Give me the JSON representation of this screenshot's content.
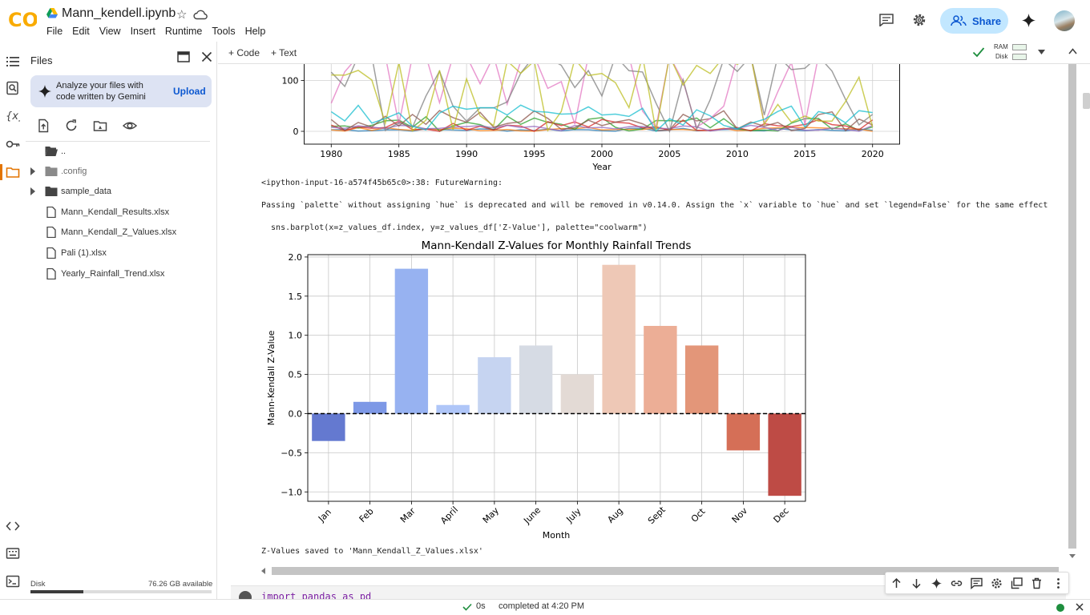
{
  "header": {
    "logo_text": "CO",
    "notebook_title": "Mann_kendell.ipynb",
    "menu": [
      "File",
      "Edit",
      "View",
      "Insert",
      "Runtime",
      "Tools",
      "Help"
    ],
    "share_label": "Share"
  },
  "files_panel": {
    "title": "Files",
    "gemini_prompt": "Analyze your files with code written by Gemini",
    "upload_label": "Upload",
    "items": [
      {
        "name": "..",
        "type": "folder-open"
      },
      {
        "name": ".config",
        "type": "folder",
        "expandable": true
      },
      {
        "name": "sample_data",
        "type": "folder",
        "expandable": true
      },
      {
        "name": "Mann_Kendall_Results.xlsx",
        "type": "file"
      },
      {
        "name": "Mann_Kendall_Z_Values.xlsx",
        "type": "file"
      },
      {
        "name": "Pali (1).xlsx",
        "type": "file"
      },
      {
        "name": "Yearly_Rainfall_Trend.xlsx",
        "type": "file"
      }
    ],
    "disk_label": "Disk",
    "disk_available": "76.26 GB available",
    "disk_used_fraction": 0.29
  },
  "toolbar": {
    "add_code": "+ Code",
    "add_text": "+ Text",
    "ram_label": "RAM",
    "disk_label": "Disk"
  },
  "output": {
    "warning_line1": "<ipython-input-16-a574f45b65c0>:38: FutureWarning:",
    "warning_line2": "Passing `palette` without assigning `hue` is deprecated and will be removed in v0.14.0. Assign the `x` variable to `hue` and set `legend=False` for the same effect",
    "code_line": "  sns.barplot(x=z_values_df.index, y=z_values_df['Z-Value'], palette=\"coolwarm\")",
    "saved_line": "Z-Values saved to 'Mann_Kendall_Z_Values.xlsx'"
  },
  "next_cell_code": "import pandas as pd",
  "status": {
    "duration": "0s",
    "message": "completed at 4:20 PM"
  },
  "chart_data": [
    {
      "type": "line",
      "title": "",
      "xlabel": "Year",
      "ylabel": "",
      "x_ticks": [
        1980,
        1985,
        1990,
        1995,
        2000,
        2005,
        2010,
        2015,
        2020
      ],
      "y_ticks_visible": [
        0,
        100
      ],
      "xlim": [
        1978,
        2022
      ],
      "note": "partially visible, top cropped",
      "series_colors": [
        "#1f77b4",
        "#ff7f0e",
        "#2ca02c",
        "#d62728",
        "#9467bd",
        "#8c564b",
        "#e377c2",
        "#7f7f7f",
        "#bcbd22",
        "#17becf"
      ]
    },
    {
      "type": "bar",
      "title": "Mann-Kendall Z-Values for Monthly Rainfall Trends",
      "xlabel": "Month",
      "ylabel": "Mann-Kendall Z-Value",
      "categories": [
        "Jan",
        "Feb",
        "Mar",
        "April",
        "May",
        "June",
        "July",
        "Aug",
        "Sept",
        "Oct",
        "Nov",
        "Dec"
      ],
      "values": [
        -0.35,
        0.15,
        1.85,
        0.11,
        0.72,
        0.87,
        0.5,
        1.9,
        1.12,
        0.87,
        -0.47,
        -1.05
      ],
      "colors": [
        "#6479d0",
        "#7d98e6",
        "#97b2f1",
        "#afc6f8",
        "#c6d4f1",
        "#d6dbe4",
        "#e3dad5",
        "#eec8b6",
        "#ecae96",
        "#e39679",
        "#d56f57",
        "#be4b45"
      ],
      "ylim": [
        -1.12,
        2.03
      ],
      "y_ticks": [
        -1.0,
        -0.5,
        0.0,
        0.5,
        1.0,
        1.5,
        2.0
      ],
      "reference_line": 0,
      "grid": true
    }
  ]
}
